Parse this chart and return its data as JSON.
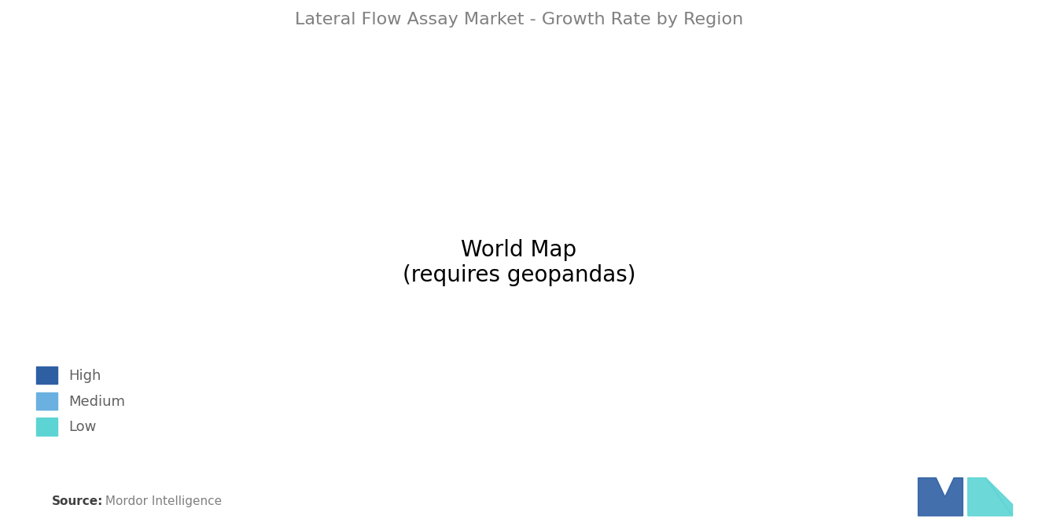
{
  "title": "Lateral Flow Assay Market - Growth Rate by Region",
  "title_color": "#808080",
  "title_fontsize": 16,
  "background_color": "#ffffff",
  "legend_items": [
    {
      "label": "High",
      "color": "#2e5fa3"
    },
    {
      "label": "Medium",
      "color": "#6ab0e0"
    },
    {
      "label": "Low",
      "color": "#5dd4d4"
    }
  ],
  "region_colors": {
    "North America": "#6ab0e0",
    "South America": "#5dd4d4",
    "Europe": "#6ab0e0",
    "Russia": "#9e9e9e",
    "Middle East Africa": "#5dd4d4",
    "South Asia": "#2e5fa3",
    "East Asia China": "#2e5fa3",
    "Southeast Asia": "#2e5fa3",
    "Australia": "#2e5fa3",
    "Japan Korea": "#2e5fa3",
    "Greenland": "#9e9e9e",
    "No Data": "#d3d3d3"
  },
  "source_text": "Source:  Mordor Intelligence",
  "source_bold": "Source:",
  "watermark_colors": [
    "#2e5fa3",
    "#5dd4d4"
  ]
}
